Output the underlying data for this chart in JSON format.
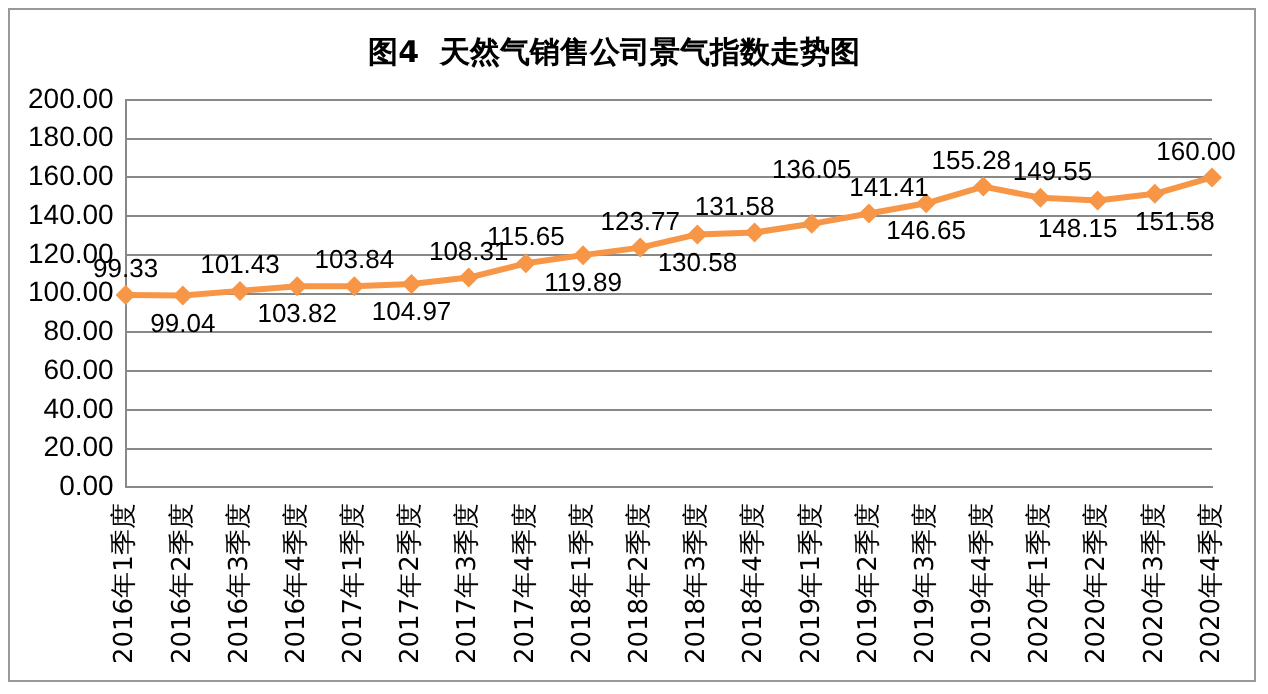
{
  "chart_data": {
    "type": "line",
    "title": "图4  天然气销售公司景气指数走势图",
    "categories": [
      "2016年1季度",
      "2016年2季度",
      "2016年3季度",
      "2016年4季度",
      "2017年1季度",
      "2017年2季度",
      "2017年3季度",
      "2017年4季度",
      "2018年1季度",
      "2018年2季度",
      "2018年3季度",
      "2018年4季度",
      "2019年1季度",
      "2019年2季度",
      "2019年3季度",
      "2019年4季度",
      "2020年1季度",
      "2020年2季度",
      "2020年3季度",
      "2020年4季度"
    ],
    "series": [
      {
        "color": "#f79646",
        "values": [
          99.33,
          99.04,
          101.43,
          103.82,
          103.84,
          104.97,
          108.31,
          115.65,
          119.89,
          123.77,
          130.58,
          131.58,
          136.05,
          141.41,
          146.65,
          155.28,
          149.55,
          148.15,
          151.58,
          160.0
        ],
        "value_labels": [
          "99.33",
          "99.04",
          "101.43",
          "103.82",
          "103.84",
          "104.97",
          "108.31",
          "115.65",
          "119.89",
          "123.77",
          "130.58",
          "131.58",
          "136.05",
          "141.41",
          "146.65",
          "155.28",
          "149.55",
          "148.15",
          "151.58",
          "160.00"
        ]
      }
    ],
    "ylim": [
      0,
      200
    ],
    "yticks": [
      {
        "value": 0,
        "label": "0.00"
      },
      {
        "value": 20,
        "label": "20.00"
      },
      {
        "value": 40,
        "label": "40.00"
      },
      {
        "value": 60,
        "label": "60.00"
      },
      {
        "value": 80,
        "label": "80.00"
      },
      {
        "value": 100,
        "label": "100.00"
      },
      {
        "value": 120,
        "label": "120.00"
      },
      {
        "value": 140,
        "label": "140.00"
      },
      {
        "value": 160,
        "label": "160.00"
      },
      {
        "value": 180,
        "label": "180.00"
      },
      {
        "value": 200,
        "label": "200.00"
      }
    ],
    "grid": "y",
    "legend": false,
    "marker": "diamond",
    "line_style": "solid"
  }
}
